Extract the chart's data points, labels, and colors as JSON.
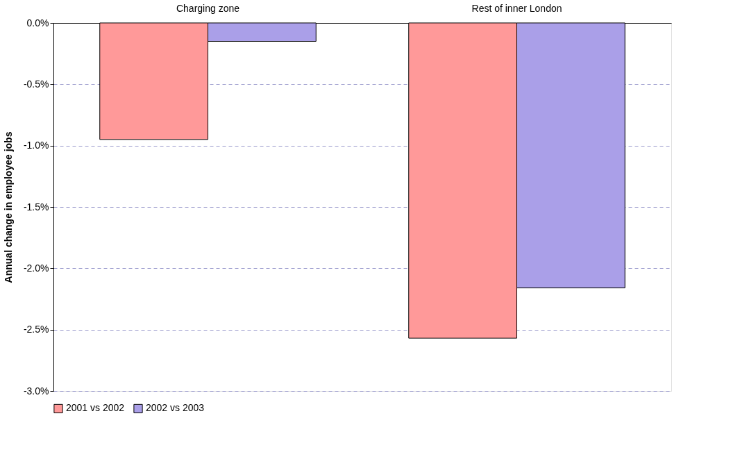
{
  "chart_data": {
    "type": "bar",
    "categories": [
      "Charging zone",
      "Rest of inner London"
    ],
    "series": [
      {
        "name": "2001 vs 2002",
        "color": "#ff9999",
        "values": [
          -0.95,
          -2.57
        ]
      },
      {
        "name": "2002 vs 2003",
        "color": "#aa9fe8",
        "values": [
          -0.15,
          -2.16
        ]
      }
    ],
    "ylabel": "Annual change in employee jobs",
    "ylim": [
      -3.0,
      0.0
    ],
    "yticks": [
      {
        "value": 0.0,
        "label": "0.0%"
      },
      {
        "value": -0.5,
        "label": "-0.5%"
      },
      {
        "value": -1.0,
        "label": "-1.0%"
      },
      {
        "value": -1.5,
        "label": "-1.5%"
      },
      {
        "value": -2.0,
        "label": "-2.0%"
      },
      {
        "value": -2.5,
        "label": "-2.5%"
      },
      {
        "value": -3.0,
        "label": "-3.0%"
      }
    ],
    "grid": "y",
    "legend": "bottom"
  }
}
